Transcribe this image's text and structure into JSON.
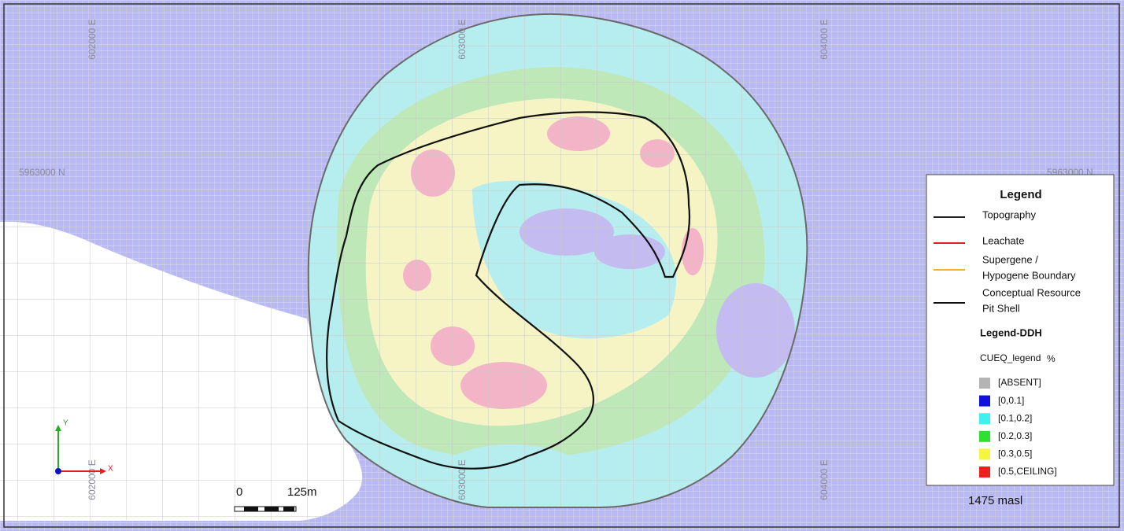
{
  "map": {
    "grid_labels": {
      "eastings_top": [
        "602000 E",
        "603000 E",
        "604000 E"
      ],
      "eastings_bottom": [
        "602000 E",
        "603000 E",
        "604000 E"
      ],
      "northings": [
        "5963000 N",
        "5963000 N"
      ]
    },
    "axes": {
      "y": "Y",
      "x": "X"
    },
    "scale_bar": {
      "start": "0",
      "end": "125m"
    },
    "elevation": "1475  masl"
  },
  "legend": {
    "title": "Legend",
    "lines": [
      {
        "label_lines": [
          "Topography"
        ],
        "color": "#222222"
      },
      {
        "label_lines": [
          "Leachate"
        ],
        "color": "#e02020"
      },
      {
        "label_lines": [
          "Supergene /",
          "Hypogene Boundary"
        ],
        "color": "#f0b030"
      },
      {
        "label_lines": [
          "Conceptual Resource",
          "Pit Shell"
        ],
        "color": "#111111"
      }
    ],
    "ddh_title": "Legend-DDH",
    "cueq_title": "CUEQ_legend",
    "cueq_unit": "%",
    "classes": [
      {
        "label": "[ABSENT]",
        "color": "#b4b4b4"
      },
      {
        "label": "[0,0.1]",
        "color": "#1010e0"
      },
      {
        "label": "[0.1,0.2]",
        "color": "#40f0f0"
      },
      {
        "label": "[0.2,0.3]",
        "color": "#30e030"
      },
      {
        "label": "[0.3,0.5]",
        "color": "#f5f540"
      },
      {
        "label": "[0.5,CEILING]",
        "color": "#f02020"
      }
    ]
  }
}
